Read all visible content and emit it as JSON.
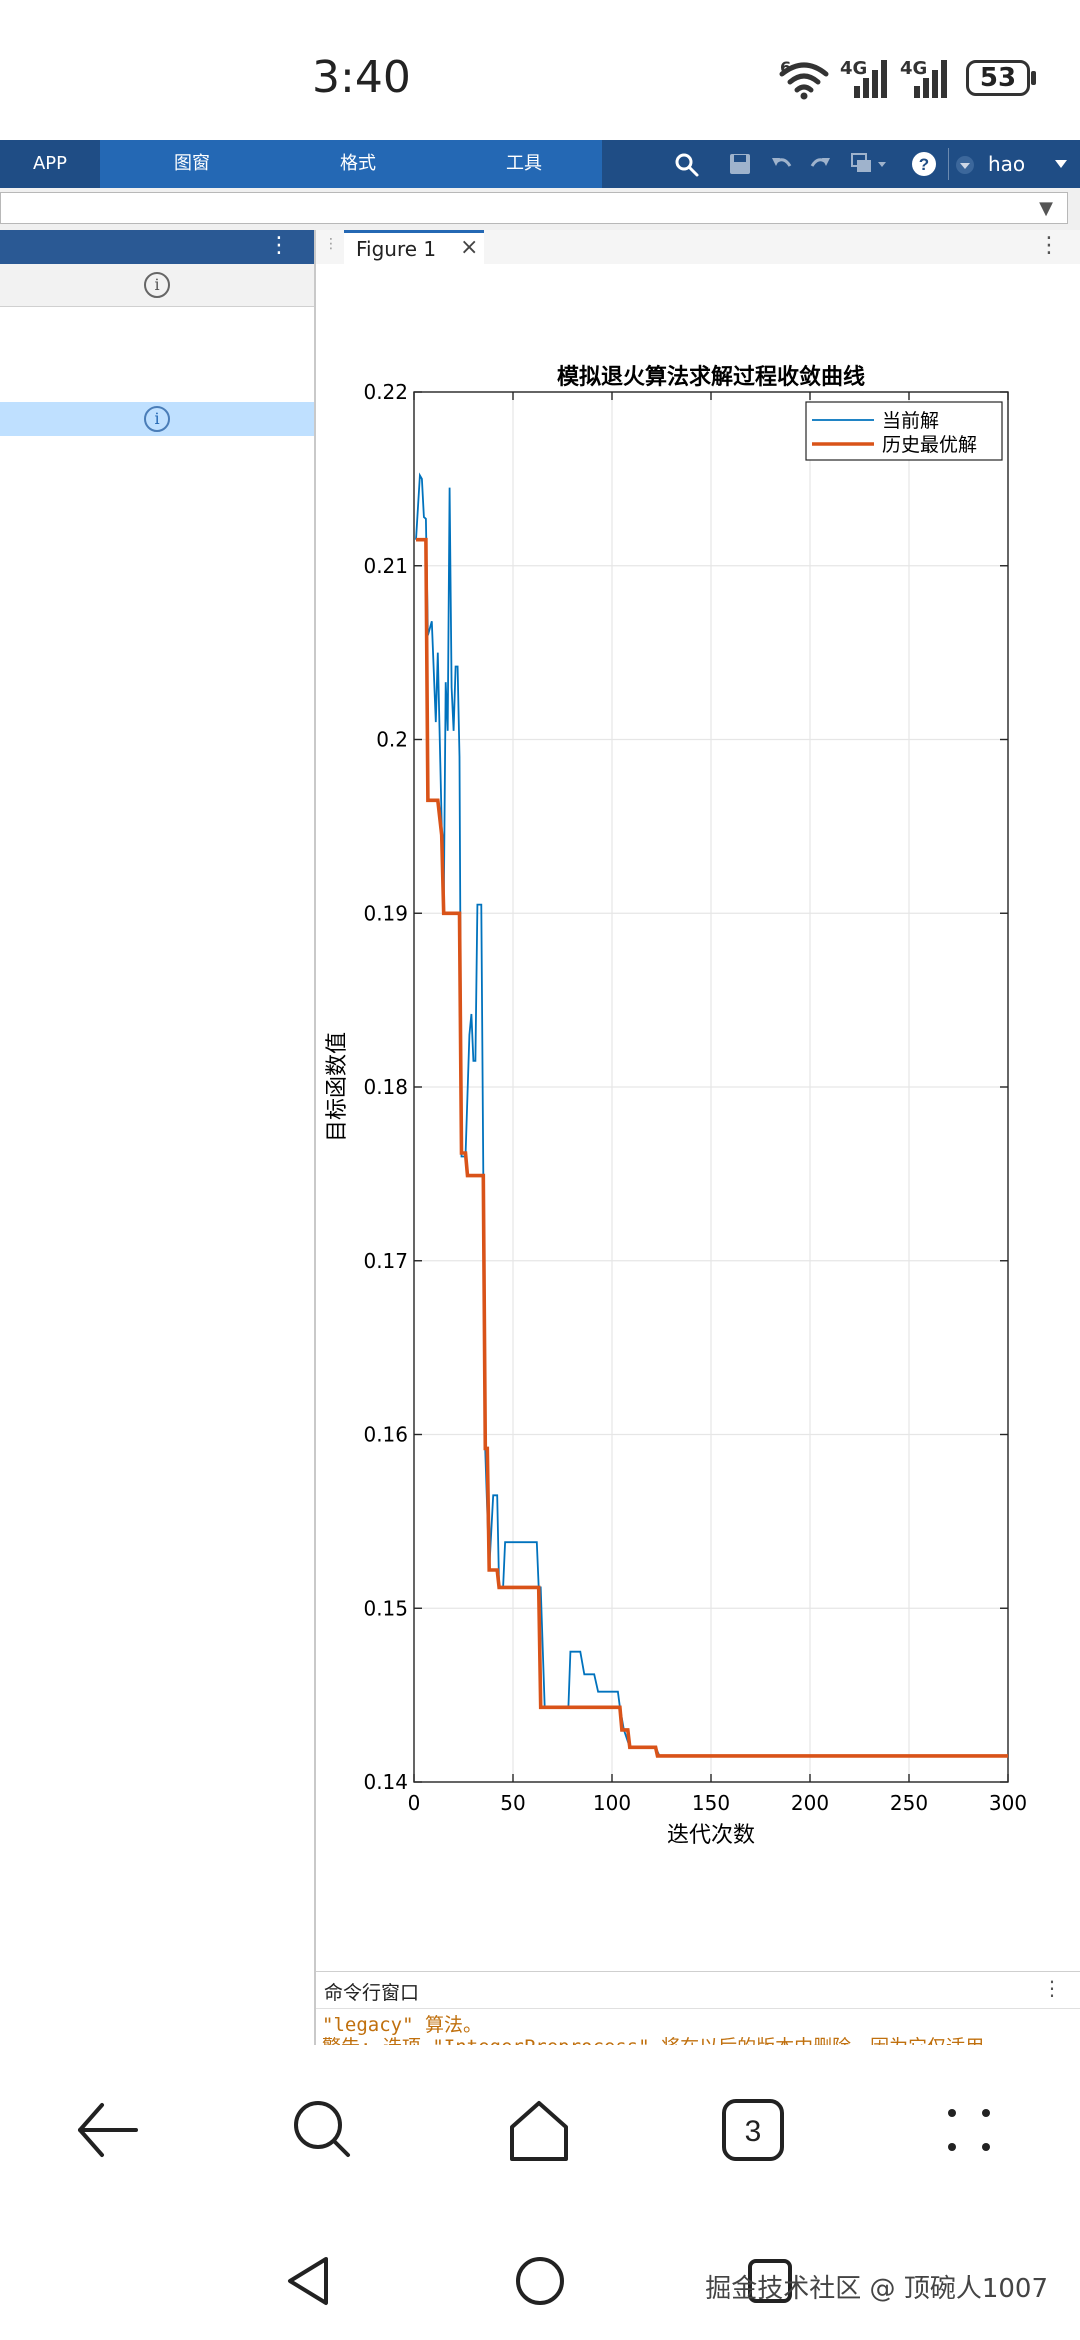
{
  "status_bar": {
    "time": "3:40",
    "signal1_label": "4G",
    "signal2_label": "4G",
    "wifi_label": "6",
    "battery": "53"
  },
  "toolstrip": {
    "tabs": [
      "APP",
      "图窗",
      "格式",
      "工具"
    ],
    "user": "hao"
  },
  "figure_tab": {
    "label": "Figure 1",
    "close": "×"
  },
  "command_window": {
    "title": "命令行窗口",
    "lines": [
      "\"legacy\" 算法。",
      "警告: 选项 \"IntegerPreprocess\" 将在以后的版本中删除。因为它仅适用"
    ]
  },
  "watermark": "掘金技术社区 @ 顶碗人1007",
  "chart_data": {
    "type": "line",
    "title": "模拟退火算法求解过程收敛曲线",
    "xlabel": "迭代次数",
    "ylabel": "目标函数值",
    "xlim": [
      0,
      300
    ],
    "ylim": [
      0.14,
      0.22
    ],
    "xticks": [
      "0",
      "50",
      "100",
      "150",
      "200",
      "250",
      "300"
    ],
    "yticks": [
      "0.14",
      "0.15",
      "0.16",
      "0.17",
      "0.18",
      "0.19",
      "0.2",
      "0.21",
      "0.22"
    ],
    "grid": true,
    "legend_position": "top-right",
    "series": [
      {
        "name": "当前解",
        "color": "#0072BD",
        "points": [
          [
            1,
            0.2115
          ],
          [
            3,
            0.2152
          ],
          [
            4,
            0.215
          ],
          [
            5,
            0.2128
          ],
          [
            6,
            0.2127
          ],
          [
            7,
            0.206
          ],
          [
            9,
            0.2068
          ],
          [
            11,
            0.201
          ],
          [
            12,
            0.205
          ],
          [
            15,
            0.19
          ],
          [
            16,
            0.2033
          ],
          [
            17,
            0.2005
          ],
          [
            18,
            0.2145
          ],
          [
            19,
            0.203
          ],
          [
            20,
            0.2005
          ],
          [
            21,
            0.2042
          ],
          [
            22,
            0.2042
          ],
          [
            23,
            0.199
          ],
          [
            24,
            0.176
          ],
          [
            26,
            0.176
          ],
          [
            28,
            0.183
          ],
          [
            29,
            0.1842
          ],
          [
            30,
            0.1815
          ],
          [
            31,
            0.1815
          ],
          [
            32,
            0.1905
          ],
          [
            34,
            0.1905
          ],
          [
            35,
            0.175
          ],
          [
            36,
            0.159
          ],
          [
            38,
            0.1522
          ],
          [
            40,
            0.1565
          ],
          [
            42,
            0.1565
          ],
          [
            43,
            0.1512
          ],
          [
            45,
            0.1512
          ],
          [
            46,
            0.1538
          ],
          [
            52,
            0.1538
          ],
          [
            58,
            0.1538
          ],
          [
            62,
            0.1538
          ],
          [
            63,
            0.1512
          ],
          [
            64,
            0.1512
          ],
          [
            66,
            0.1443
          ],
          [
            78,
            0.1443
          ],
          [
            79,
            0.1475
          ],
          [
            84,
            0.1475
          ],
          [
            86,
            0.1462
          ],
          [
            91,
            0.1462
          ],
          [
            93,
            0.1452
          ],
          [
            103,
            0.1452
          ],
          [
            104,
            0.1443
          ],
          [
            106,
            0.143
          ],
          [
            109,
            0.142
          ],
          [
            122,
            0.142
          ],
          [
            124,
            0.1415
          ],
          [
            300,
            0.1415
          ]
        ]
      },
      {
        "name": "历史最优解",
        "color": "#D95319",
        "points": [
          [
            1,
            0.2115
          ],
          [
            6,
            0.2115
          ],
          [
            7,
            0.1965
          ],
          [
            12,
            0.1965
          ],
          [
            14,
            0.1945
          ],
          [
            15,
            0.19
          ],
          [
            23,
            0.19
          ],
          [
            24,
            0.1762
          ],
          [
            26,
            0.1762
          ],
          [
            27,
            0.1749
          ],
          [
            35,
            0.1749
          ],
          [
            36,
            0.1592
          ],
          [
            37,
            0.1592
          ],
          [
            38,
            0.1522
          ],
          [
            42,
            0.1522
          ],
          [
            43,
            0.1512
          ],
          [
            63,
            0.1512
          ],
          [
            64,
            0.1443
          ],
          [
            104,
            0.1443
          ],
          [
            105,
            0.143
          ],
          [
            108,
            0.143
          ],
          [
            109,
            0.142
          ],
          [
            122,
            0.142
          ],
          [
            123,
            0.1415
          ],
          [
            300,
            0.1415
          ]
        ]
      }
    ]
  }
}
